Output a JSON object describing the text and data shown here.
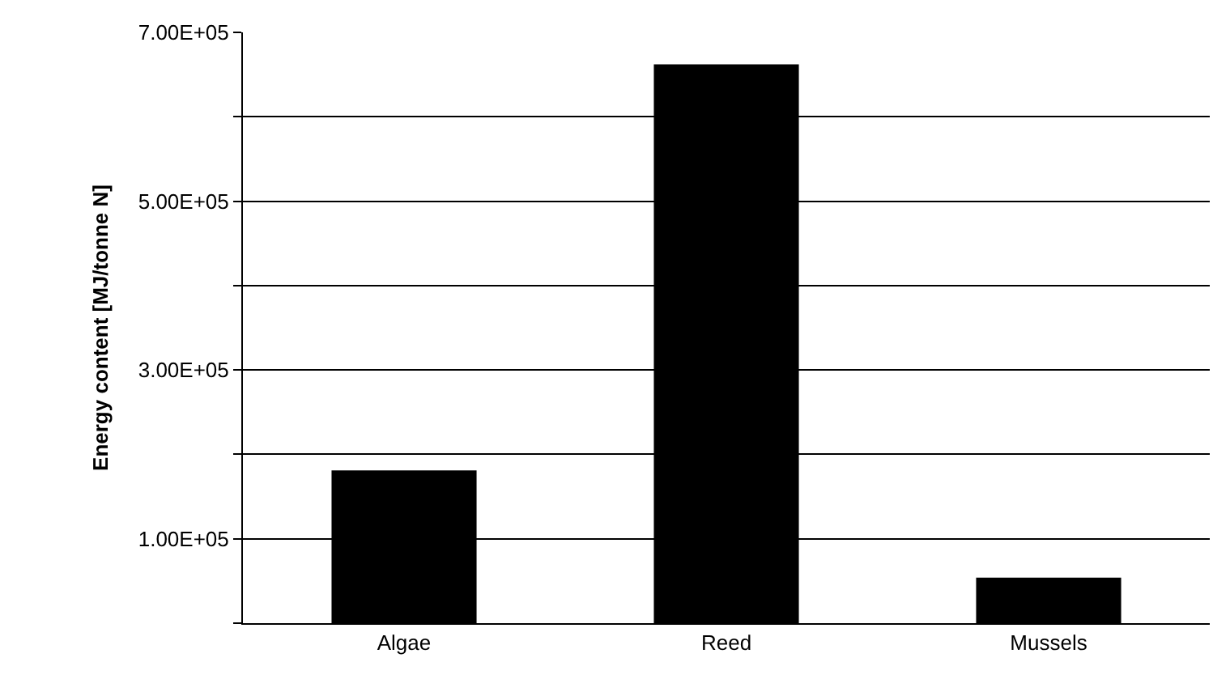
{
  "chart_data": {
    "type": "bar",
    "ylabel": "Energy content [MJ/tonne N]",
    "categories": [
      "Algae",
      "Reed",
      "Mussels"
    ],
    "values": [
      181000,
      662000,
      54000
    ],
    "color": "#000000",
    "ylim": [
      0,
      700000
    ],
    "yticks": [
      {
        "value": 0,
        "label": null
      },
      {
        "value": 100000,
        "label": "1.00E+05"
      },
      {
        "value": 200000,
        "label": null
      },
      {
        "value": 300000,
        "label": "3.00E+05"
      },
      {
        "value": 400000,
        "label": null
      },
      {
        "value": 500000,
        "label": "5.00E+05"
      },
      {
        "value": 600000,
        "label": null
      },
      {
        "value": 700000,
        "label": "7.00E+05"
      }
    ],
    "grid": "y"
  }
}
